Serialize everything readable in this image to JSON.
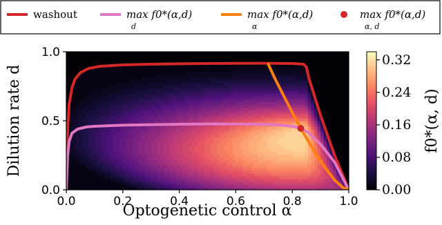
{
  "chart_data": {
    "type": "heatmap",
    "title": "",
    "xlabel": "Optogenetic control α",
    "ylabel": "Dilution rate d",
    "xlim": [
      0.0,
      1.0
    ],
    "ylim": [
      0.0,
      1.0
    ],
    "x_ticks": [
      "0.0",
      "0.2",
      "0.4",
      "0.6",
      "0.8",
      "1.0"
    ],
    "y_ticks": [
      "0.0",
      "0.5",
      "1.0"
    ],
    "colorbar": {
      "label": "f0*(α, d)",
      "range": [
        0.0,
        0.34
      ],
      "ticks": [
        "0.00",
        "0.08",
        "0.16",
        "0.24",
        "0.32"
      ],
      "colormap": "magma"
    },
    "legend": {
      "placement": "top",
      "entries": [
        {
          "key": "washout",
          "label": "washout",
          "color": "#d62728",
          "marker": "line"
        },
        {
          "key": "maxd",
          "label": "max f0*(α,d)",
          "sub": "d",
          "color": "#e377c2",
          "marker": "line"
        },
        {
          "key": "maxa",
          "label": "max f0*(α,d)",
          "sub": "α",
          "color": "#ff7f0e",
          "marker": "line"
        },
        {
          "key": "maxad",
          "label": "max f0*(α,d)",
          "sub": "α, d",
          "color": "#d62728",
          "marker": "dot"
        }
      ]
    },
    "series": [
      {
        "key": "washout",
        "color": "#d62728",
        "x": [
          0.0,
          0.005,
          0.01,
          0.02,
          0.03,
          0.05,
          0.08,
          0.12,
          0.2,
          0.3,
          0.4,
          0.5,
          0.6,
          0.7,
          0.8,
          0.84,
          0.85,
          0.86,
          0.9,
          0.95,
          1.0
        ],
        "y": [
          0.0,
          0.45,
          0.62,
          0.74,
          0.8,
          0.85,
          0.88,
          0.895,
          0.905,
          0.91,
          0.913,
          0.915,
          0.916,
          0.917,
          0.915,
          0.91,
          0.89,
          0.8,
          0.54,
          0.25,
          0.0
        ]
      },
      {
        "key": "maxd",
        "color": "#e377c2",
        "x": [
          0.0,
          0.005,
          0.01,
          0.02,
          0.04,
          0.07,
          0.1,
          0.2,
          0.3,
          0.4,
          0.5,
          0.6,
          0.7,
          0.75,
          0.8,
          0.83,
          0.86,
          0.9,
          0.95,
          1.0
        ],
        "y": [
          0.0,
          0.25,
          0.35,
          0.41,
          0.44,
          0.455,
          0.46,
          0.468,
          0.472,
          0.475,
          0.477,
          0.477,
          0.474,
          0.47,
          0.46,
          0.447,
          0.41,
          0.33,
          0.2,
          0.0
        ]
      },
      {
        "key": "maxa",
        "color": "#ff7f0e",
        "x": [
          0.715,
          0.74,
          0.77,
          0.8,
          0.83,
          0.86,
          0.89,
          0.92,
          0.95,
          0.98,
          1.0
        ],
        "y": [
          0.91,
          0.8,
          0.68,
          0.56,
          0.445,
          0.34,
          0.24,
          0.15,
          0.07,
          0.015,
          0.0
        ]
      }
    ],
    "max_point": {
      "x": 0.83,
      "y": 0.445,
      "color": "#d62728"
    }
  }
}
